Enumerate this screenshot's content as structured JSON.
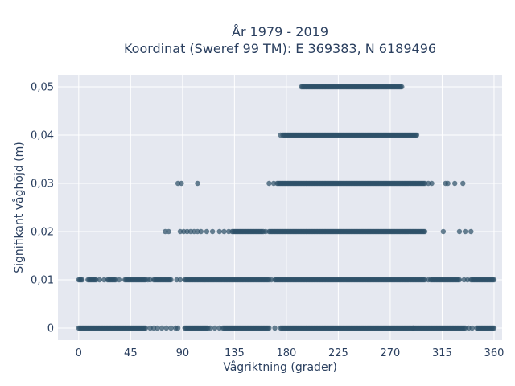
{
  "chart_data": {
    "type": "scatter",
    "title_lines": [
      "År 1979 - 2019",
      "Koordinat (Sweref 99 TM): E 369383, N 6189496"
    ],
    "xlabel": "Vågriktning (grader)",
    "ylabel": "Signifikant våghöjd (m)",
    "xlim": [
      -18,
      367
    ],
    "ylim": [
      -0.0025,
      0.0525
    ],
    "x_ticks": [
      0,
      45,
      90,
      135,
      180,
      225,
      270,
      315,
      360
    ],
    "y_ticks": [
      0,
      0.01,
      0.02,
      0.03,
      0.04,
      0.05
    ],
    "y_tick_labels": [
      "0",
      "0,01",
      "0,02",
      "0,03",
      "0,04",
      "0,05"
    ],
    "grid": true,
    "marker_color": "#2e5168",
    "background_color": "#e5e8f0",
    "series": [
      {
        "y": 0,
        "dense_ranges": [
          [
            0,
            58
          ],
          [
            92,
            112
          ],
          [
            125,
            165
          ],
          [
            175,
            290
          ],
          [
            290,
            335
          ],
          [
            345,
            360
          ]
        ],
        "sparse_points": [
          62,
          65,
          68,
          72,
          76,
          80,
          84,
          86,
          114,
          118,
          122,
          170,
          338,
          341
        ]
      },
      {
        "y": 0.01,
        "dense_ranges": [
          [
            0,
            3
          ],
          [
            8,
            15
          ],
          [
            25,
            32
          ],
          [
            40,
            58
          ],
          [
            65,
            80
          ],
          [
            92,
            165
          ],
          [
            170,
            300
          ],
          [
            305,
            330
          ],
          [
            340,
            360
          ]
        ],
        "sparse_points": [
          18,
          22,
          35,
          60,
          62,
          85,
          88,
          167,
          303,
          334,
          337
        ]
      },
      {
        "y": 0.02,
        "dense_ranges": [
          [
            133,
            160
          ],
          [
            165,
            300
          ]
        ],
        "sparse_points": [
          75,
          78,
          88,
          91,
          94,
          97,
          100,
          103,
          106,
          111,
          116,
          122,
          126,
          130,
          162,
          316,
          330,
          335,
          340
        ]
      },
      {
        "y": 0.03,
        "dense_ranges": [
          [
            172,
            300
          ]
        ],
        "sparse_points": [
          86,
          89,
          103,
          165,
          169,
          303,
          306,
          318,
          320,
          326,
          333
        ]
      },
      {
        "y": 0.04,
        "dense_ranges": [
          [
            177,
            293
          ]
        ],
        "sparse_points": [
          175
        ]
      },
      {
        "y": 0.05,
        "dense_ranges": [
          [
            193,
            280
          ]
        ],
        "sparse_points": []
      }
    ]
  }
}
